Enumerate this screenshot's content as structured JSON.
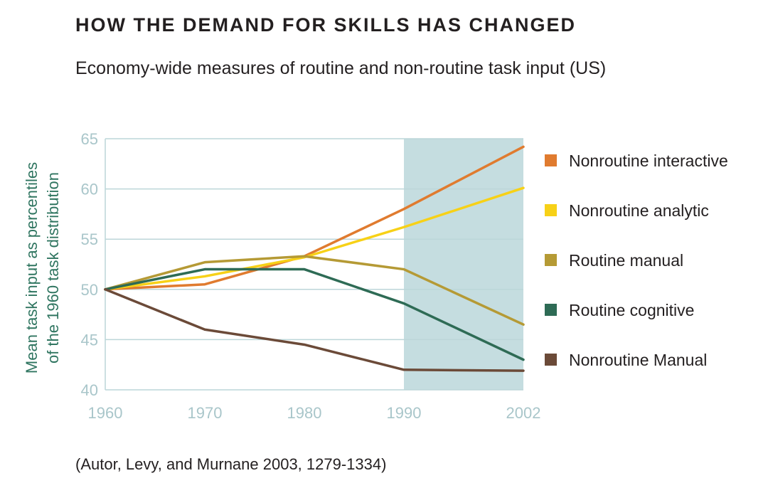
{
  "title": "HOW THE DEMAND FOR SKILLS HAS CHANGED",
  "subtitle": "Economy-wide measures of routine and non-routine task input (US)",
  "citation": "(Autor, Levy, and Murnane 2003, 1279-1334)",
  "chart_data": {
    "type": "line",
    "title": "HOW THE DEMAND FOR SKILLS HAS CHANGED",
    "subtitle": "Economy-wide measures of routine and non-routine task input (US)",
    "xlabel": "",
    "ylabel_lines": [
      "Mean task input as percentiles",
      "of the 1960 task distribution"
    ],
    "x": [
      1960,
      1970,
      1980,
      1990,
      2002
    ],
    "x_tick_labels": [
      "1960",
      "1970",
      "1980",
      "1990",
      "2002"
    ],
    "ylim": [
      40,
      65
    ],
    "y_ticks": [
      40,
      45,
      50,
      55,
      60,
      65
    ],
    "y_tick_labels": [
      "40",
      "45",
      "50",
      "55",
      "60",
      "65"
    ],
    "highlight_range": [
      1990,
      2002
    ],
    "highlight_color": "#c5dde0",
    "grid_color": "#bcd6d9",
    "series": [
      {
        "name": "Nonroutine interactive",
        "color": "#e07b2f",
        "values": [
          50,
          50.5,
          53.3,
          58,
          64.2
        ]
      },
      {
        "name": "Nonroutine analytic",
        "color": "#f7d117",
        "values": [
          50,
          51.3,
          53.2,
          56.2,
          60.1
        ]
      },
      {
        "name": "Routine manual",
        "color": "#b59a35",
        "values": [
          50,
          52.7,
          53.3,
          52,
          46.5
        ]
      },
      {
        "name": "Routine cognitive",
        "color": "#2e6b55",
        "values": [
          50,
          52,
          52,
          48.6,
          43
        ]
      },
      {
        "name": "Nonroutine Manual",
        "color": "#6b4a38",
        "values": [
          50,
          46,
          44.5,
          42,
          41.9
        ]
      }
    ]
  }
}
